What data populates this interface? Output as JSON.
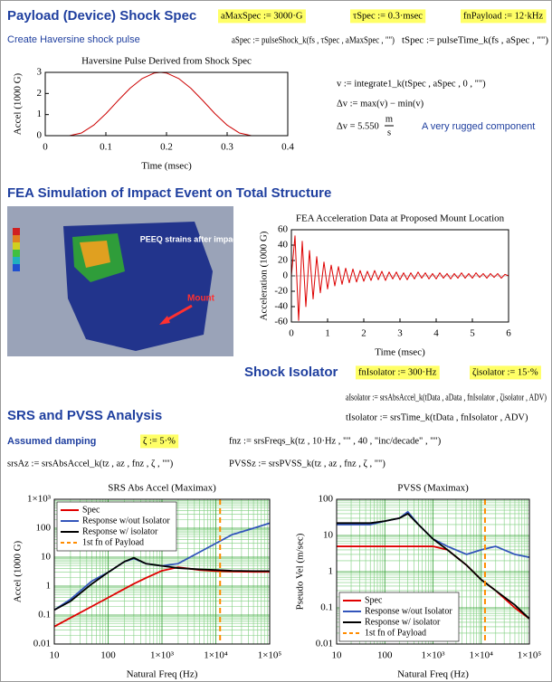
{
  "header": {
    "title": "Payload (Device) Shock Spec",
    "a_max_spec": "aMaxSpec := 3000·G",
    "tau_spec": "τSpec := 0.3·msec",
    "fn_payload": "fnPayload := 12·kHz"
  },
  "pulse": {
    "label": "Create Haversine shock pulse",
    "a_spec": "aSpec := pulseShock_k(fs , τSpec , aMaxSpec , \"\")",
    "t_spec": "tSpec := pulseTime_k(fs , aSpec , \"\")",
    "v_eq": "v := integrate1_k(tSpec , aSpec , 0 , \"\")",
    "dv_eq": "Δv := max(v) − min(v)",
    "dv_result": "Δv = 5.550",
    "dv_unit_num": "m",
    "dv_unit_den": "s",
    "note": "A very rugged component"
  },
  "fea": {
    "title": "FEA Simulation of Impact Event on Total Structure",
    "image_caption": "PEEQ strains after impact",
    "image_callout": "Mount"
  },
  "isolator": {
    "title": "Shock Isolator",
    "fn_isolator": "fnIsolator := 300·Hz",
    "zeta_isolator": "ζisolator := 15·%",
    "a_isolator": "aIsolator := srsAbsAccel_k(tData , aData , fnIsolator , ζisolator , ADV)",
    "t_isolator": "tIsolator := srsTime_k(tData , fnIsolator , ADV)"
  },
  "srs": {
    "title": "SRS and PVSS Analysis",
    "damping_label": "Assumed damping",
    "zeta": "ζ := 5·%",
    "fn_z": "fnz := srsFreqs_k(tz , 10·Hz , \"\" , 40 , \"inc/decade\" , \"\")",
    "srs_az": "srsAz := srsAbsAccel_k(tz , az , fnz , ζ , \"\")",
    "pvss_z": "PVSSz := srsPVSS_k(tz , az , fnz , ζ , \"\")"
  },
  "chart_data": [
    {
      "type": "line",
      "title": "Haversine Pulse Derived from Shock Spec",
      "x_label": "Time (msec)",
      "y_label": "Accel (1000 G)",
      "x": [
        0,
        0.02,
        0.04,
        0.06,
        0.08,
        0.1,
        0.12,
        0.14,
        0.16,
        0.18,
        0.19,
        0.2,
        0.22,
        0.24,
        0.26,
        0.28,
        0.3,
        0.32,
        0.34,
        0.36,
        0.38
      ],
      "series": [
        {
          "color": "#cc0000",
          "values": [
            0,
            0,
            0,
            0.13,
            0.5,
            1.04,
            1.66,
            2.25,
            2.71,
            2.97,
            3.0,
            2.97,
            2.71,
            2.25,
            1.66,
            1.04,
            0.5,
            0.13,
            0,
            0,
            0
          ]
        }
      ],
      "xlim": [
        0,
        0.4
      ],
      "xticks": [
        0,
        0.1,
        0.2,
        0.3,
        0.4
      ],
      "ylim": [
        0,
        3
      ],
      "yticks": [
        0,
        1,
        2,
        3
      ],
      "grid": false
    },
    {
      "type": "line",
      "title": "FEA Acceleration Data at Proposed Mount Location",
      "x_label": "Time (msec)",
      "y_label": "Acceleration (1000 G)",
      "x": [
        0,
        0.1,
        0.2,
        0.3,
        0.4,
        0.5,
        0.6,
        0.7,
        0.8,
        0.9,
        1,
        1.1,
        1.2,
        1.3,
        1.4,
        1.5,
        1.6,
        1.7,
        1.8,
        1.9,
        2,
        2.1,
        2.2,
        2.3,
        2.4,
        2.5,
        2.6,
        2.7,
        2.8,
        2.9,
        3,
        3.1,
        3.2,
        3.3,
        3.4,
        3.5,
        3.6,
        3.7,
        3.8,
        3.9,
        4,
        4.1,
        4.2,
        4.3,
        4.4,
        4.5,
        4.6,
        4.7,
        4.8,
        4.9,
        5,
        5.1,
        5.2,
        5.3,
        5.4,
        5.5,
        5.6,
        5.7,
        5.8,
        5.9,
        6
      ],
      "series": [
        {
          "color": "#dd0000",
          "values": [
            0,
            52,
            -58,
            45,
            -40,
            33,
            -30,
            25,
            -22,
            18,
            -17,
            14,
            -13,
            12,
            -11,
            10,
            -9,
            9,
            -8,
            7,
            -7,
            6,
            -6,
            7,
            -5,
            6,
            -6,
            5,
            -4,
            5,
            -5,
            4,
            -5,
            4,
            -4,
            5,
            -3,
            4,
            -4,
            3,
            -4,
            4,
            -3,
            3,
            -4,
            3,
            -3,
            4,
            -3,
            3,
            -3,
            4,
            -2,
            3,
            -3,
            3,
            -2,
            3,
            -3,
            2,
            0
          ]
        }
      ],
      "xlim": [
        0,
        6
      ],
      "xticks": [
        0,
        1,
        2,
        3,
        4,
        5,
        6
      ],
      "ylim": [
        -60,
        60
      ],
      "yticks": [
        -60,
        -40,
        -20,
        0,
        20,
        40,
        60
      ],
      "grid": false
    },
    {
      "type": "line",
      "title": "SRS Abs Accel (Maximax)",
      "x_label": "Natural Freq (Hz)",
      "y_label": "Accel (1000 G)",
      "xscale": "log",
      "yscale": "log",
      "grid": true,
      "legend": "upper left",
      "x": [
        10,
        20,
        50,
        100,
        200,
        300,
        500,
        1000,
        2000,
        5000,
        10000,
        20000,
        50000,
        100000
      ],
      "series": [
        {
          "name": "Spec",
          "color": "#e00000",
          "values": [
            0.04,
            0.08,
            0.2,
            0.4,
            0.8,
            1.2,
            1.9,
            3.4,
            4.5,
            3.6,
            3.3,
            3.2,
            3.1,
            3.1
          ]
        },
        {
          "name": "Response w/out Isolator",
          "color": "#3355bb",
          "values": [
            0.15,
            0.35,
            1.5,
            3,
            7,
            9,
            6,
            5,
            6,
            15,
            30,
            60,
            100,
            150
          ]
        },
        {
          "name": "Response w/ isolator",
          "color": "#000000",
          "values": [
            0.15,
            0.3,
            1.2,
            3,
            7,
            9.5,
            6,
            5,
            4.2,
            3.8,
            3.6,
            3.4,
            3.3,
            3.3
          ]
        }
      ],
      "vlines": [
        {
          "name": "1st fn of Payload",
          "color": "#ff8c00",
          "x": 12000
        }
      ],
      "xlim": [
        10,
        100000
      ],
      "xticks": [
        10,
        100,
        {
          "value": 1000,
          "label": "1×10³"
        },
        {
          "value": 10000,
          "label": "1×10⁴"
        },
        {
          "value": 100000,
          "label": "1×10⁵"
        }
      ],
      "ylim": [
        0.01,
        1000
      ],
      "yticks": [
        0.01,
        0.1,
        1,
        10,
        100,
        {
          "value": 1000,
          "label": "1×10³"
        }
      ]
    },
    {
      "type": "line",
      "title": "PVSS (Maximax)",
      "x_label": "Natural Freq (Hz)",
      "y_label": "Pseudo Vel (m/sec)",
      "xscale": "log",
      "yscale": "log",
      "grid": true,
      "legend": "lower left",
      "x": [
        10,
        20,
        50,
        100,
        200,
        300,
        500,
        1000,
        2000,
        5000,
        10000,
        20000,
        50000,
        100000
      ],
      "series": [
        {
          "name": "Spec",
          "color": "#e00000",
          "values": [
            5,
            5,
            5,
            5,
            5,
            5,
            5,
            5,
            4,
            1.5,
            0.6,
            0.3,
            0.1,
            0.05
          ]
        },
        {
          "name": "Response w/out Isolator",
          "color": "#3355bb",
          "values": [
            20,
            20,
            20,
            25,
            30,
            45,
            20,
            8,
            5,
            3,
            4,
            5,
            3,
            2.5
          ]
        },
        {
          "name": "Response w/ isolator",
          "color": "#000000",
          "values": [
            22,
            22,
            22,
            25,
            30,
            40,
            20,
            8,
            4,
            1.5,
            0.6,
            0.3,
            0.12,
            0.05
          ]
        }
      ],
      "vlines": [
        {
          "name": "1st fn of Payload",
          "color": "#ff8c00",
          "x": 12000
        }
      ],
      "xlim": [
        10,
        100000
      ],
      "xticks": [
        10,
        100,
        {
          "value": 1000,
          "label": "1×10³"
        },
        {
          "value": 10000,
          "label": "1×10⁴"
        },
        {
          "value": 100000,
          "label": "1×10⁵"
        }
      ],
      "ylim": [
        0.01,
        100
      ],
      "yticks": [
        0.01,
        0.1,
        1,
        10,
        100
      ]
    }
  ]
}
